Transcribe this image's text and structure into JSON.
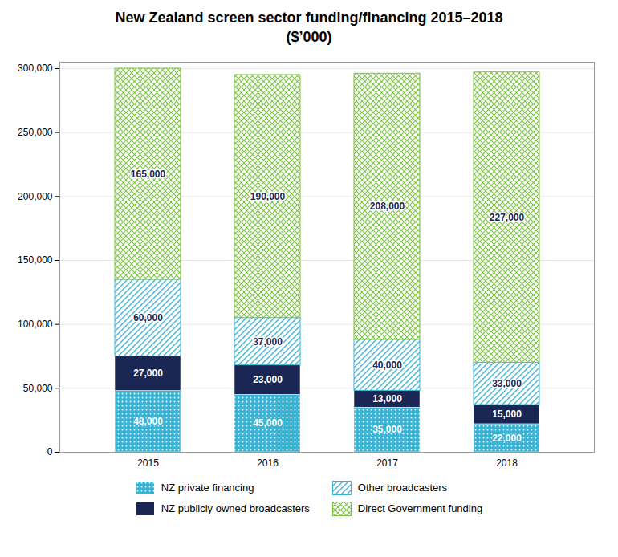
{
  "chart_data": {
    "type": "bar",
    "stacked": true,
    "title": "New Zealand screen sector funding/financing 2015–2018\n($’000)",
    "categories": [
      "2015",
      "2016",
      "2017",
      "2018"
    ],
    "series": [
      {
        "name": "NZ private financing",
        "color": "#3ab4d4",
        "values": [
          48000,
          45000,
          35000,
          22000
        ],
        "value_labels": [
          "48,000",
          "45,000",
          "35,000",
          "22,000"
        ]
      },
      {
        "name": "NZ publicly owned broadcasters",
        "color": "#1a2754",
        "values": [
          27000,
          23000,
          13000,
          15000
        ],
        "value_labels": [
          "27,000",
          "23,000",
          "13,000",
          "15,000"
        ]
      },
      {
        "name": "Other broadcasters",
        "color": "#3ab4d4",
        "values": [
          60000,
          37000,
          40000,
          33000
        ],
        "value_labels": [
          "60,000",
          "37,000",
          "40,000",
          "33,000"
        ]
      },
      {
        "name": "Direct Government funding",
        "color": "#7dc243",
        "values": [
          165000,
          190000,
          208000,
          227000
        ],
        "value_labels": [
          "165,000",
          "190,000",
          "208,000",
          "227,000"
        ]
      }
    ],
    "ylim": [
      0,
      305000
    ],
    "yticks": [
      0,
      {
        "value": 50000,
        "label": "50,000"
      },
      {
        "value": 100000,
        "label": "100,000"
      },
      {
        "value": 150000,
        "label": "150,000"
      },
      {
        "value": 200000,
        "label": "200,000"
      },
      {
        "value": 250000,
        "label": "250,000"
      },
      {
        "value": 300000,
        "label": "300,000"
      }
    ],
    "grid": true,
    "legend": "bottom",
    "data_labels": true
  }
}
